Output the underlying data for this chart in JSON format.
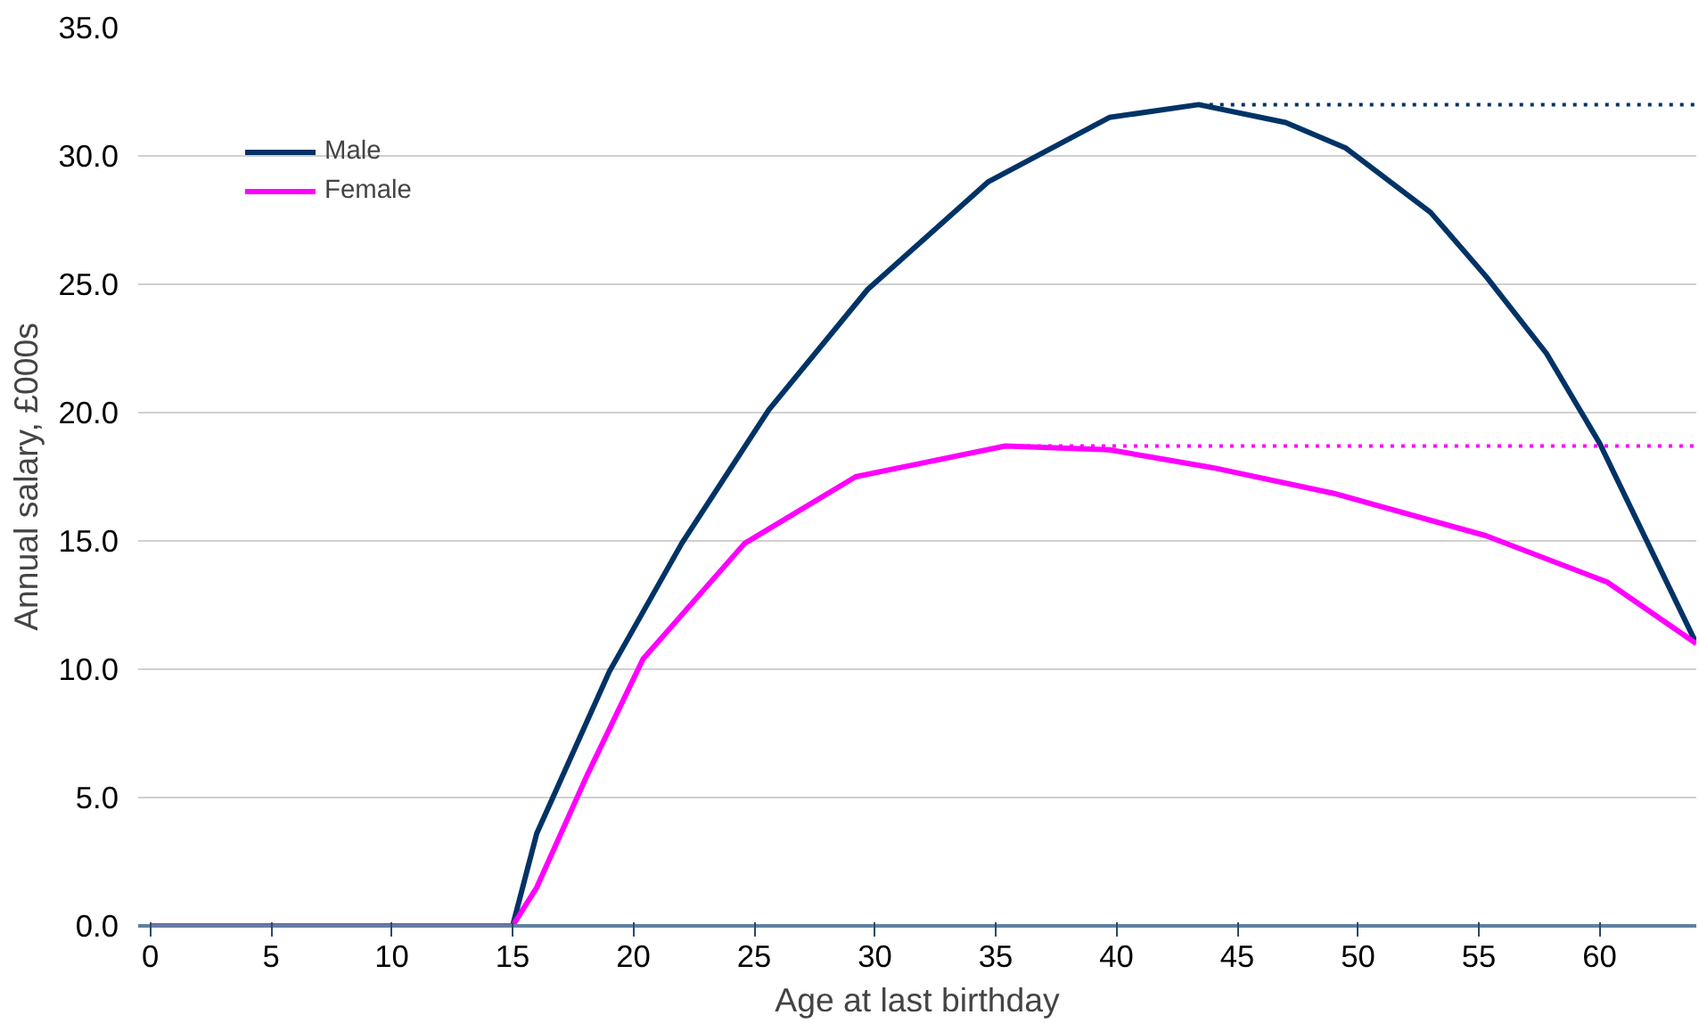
{
  "chart_data": {
    "type": "line",
    "xlabel": "Age at last birthday",
    "ylabel": "Annual salary, £000s",
    "xlim": [
      -0.5,
      64
    ],
    "xticks": [
      0,
      5,
      10,
      15,
      20,
      25,
      30,
      35,
      40,
      45,
      50,
      55,
      60
    ],
    "ylim": [
      0,
      35
    ],
    "yticks": [
      {
        "value": 0,
        "label": "0.0"
      },
      {
        "value": 5,
        "label": "5.0"
      },
      {
        "value": 10,
        "label": "10.0"
      },
      {
        "value": 15,
        "label": "15.0"
      },
      {
        "value": 20,
        "label": "20.0"
      },
      {
        "value": 25,
        "label": "25.0"
      },
      {
        "value": 30,
        "label": "30.0"
      },
      {
        "value": 35,
        "label": "35.0"
      }
    ],
    "grid": "y",
    "legend": "top left",
    "line_style": "solid",
    "series": [
      {
        "name": "Male",
        "color": "#003366",
        "x": [
          0,
          15,
          16,
          19,
          22,
          25.6,
          29.7,
          34.7,
          39.7,
          43.4,
          47,
          49.5,
          53,
          55.3,
          57.8,
          60,
          64
        ],
        "values": [
          0,
          0,
          3.6,
          9.9,
          14.9,
          20.1,
          24.8,
          29.0,
          31.5,
          32.0,
          31.3,
          30.3,
          27.8,
          25.3,
          22.3,
          18.8,
          11.0
        ]
      },
      {
        "name": "Female",
        "color": "#ff00ff",
        "x": [
          0,
          15,
          16,
          18.1,
          20.4,
          24.6,
          29.2,
          35.4,
          39.7,
          44,
          49,
          55.3,
          60.3,
          64
        ],
        "values": [
          0,
          0,
          1.5,
          5.9,
          10.4,
          14.9,
          17.5,
          18.7,
          18.55,
          17.85,
          16.85,
          15.2,
          13.4,
          11.0
        ]
      }
    ],
    "ref_lines": [
      {
        "axis": "y",
        "value": 32.0,
        "color": "#003366",
        "line_style": "dotted"
      },
      {
        "axis": "y",
        "value": 18.7,
        "color": "#ff00ff",
        "line_style": "dotted"
      }
    ]
  }
}
